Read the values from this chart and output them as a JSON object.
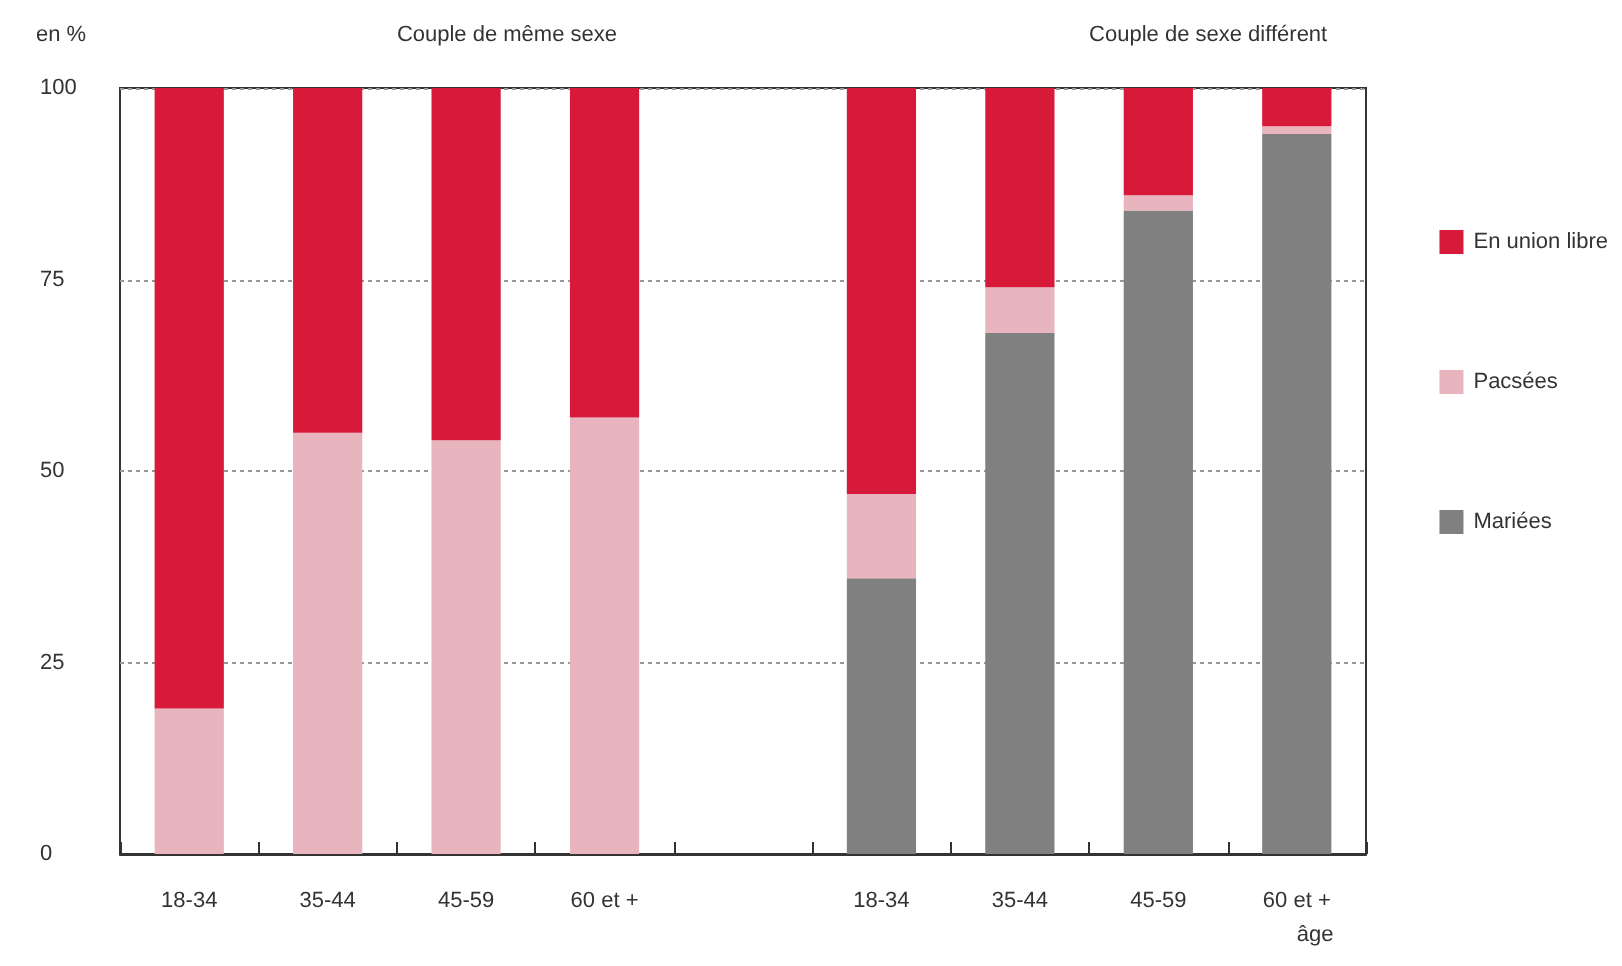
{
  "chart_data": {
    "type": "bar",
    "stacked": true,
    "ylabel": "en %",
    "xlabel": "âge",
    "annotations": [
      "Couple de même sexe",
      "Couple de sexe différent"
    ],
    "categories": [
      "18-34",
      "35-44",
      "45-59",
      "60 et +",
      null,
      "18-34",
      "35-44",
      "45-59",
      "60 et +"
    ],
    "series": [
      {
        "name": "Mariées",
        "color": "#808080",
        "values": [
          0,
          0,
          0,
          0,
          null,
          36,
          68,
          84,
          94
        ]
      },
      {
        "name": "Pacsées",
        "color": "#e8b4bd",
        "values": [
          19,
          55,
          54,
          57,
          null,
          11,
          6,
          2,
          1
        ]
      },
      {
        "name": "En union libre",
        "color": "#d7193a",
        "values": [
          81,
          45,
          46,
          43,
          null,
          53,
          26,
          14,
          5
        ]
      }
    ],
    "ylim": [
      0,
      100
    ],
    "yticks": [
      0,
      25,
      50,
      75,
      100
    ],
    "grid": "y",
    "legend": "right"
  }
}
